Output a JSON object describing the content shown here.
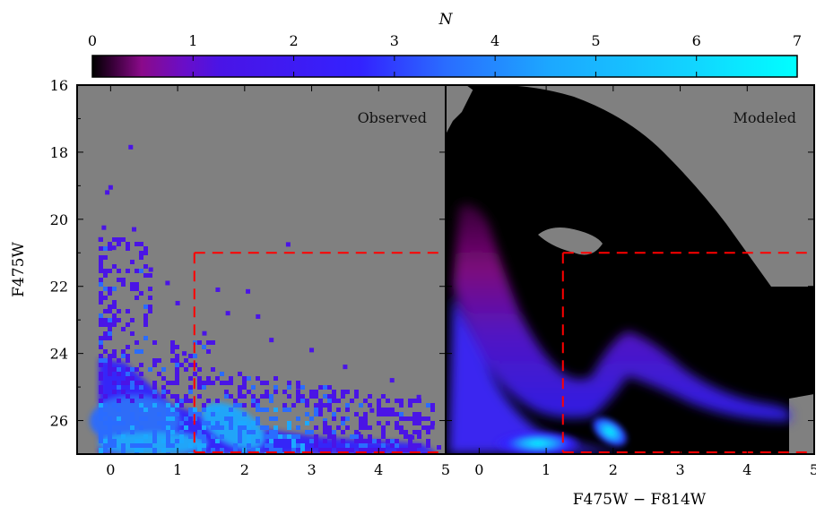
{
  "chart_data": {
    "type": "heatmap",
    "colorbar": {
      "label": "N",
      "ticks": [
        "0",
        "1",
        "2",
        "3",
        "4",
        "5",
        "6",
        "7"
      ],
      "range": [
        0,
        7
      ],
      "colors": [
        "#000000",
        "#8a0a8a",
        "#4a14e6",
        "#3322ff",
        "#2a6cff",
        "#1ca8ff",
        "#12d4ff",
        "#00ffff"
      ]
    },
    "background_color": "#808080",
    "ylabel": "F475W",
    "xlabel": "F475W − F814W",
    "ylim": [
      16,
      27
    ],
    "y_inverted": true,
    "y_ticks": [
      "16",
      "18",
      "20",
      "22",
      "24",
      "26"
    ],
    "y_tick_values": [
      16,
      18,
      20,
      22,
      24,
      26
    ],
    "panels": [
      {
        "label": "Observed",
        "xlim": [
          -0.5,
          5
        ],
        "x_ticks": [
          "0",
          "1",
          "2",
          "3",
          "4",
          "5"
        ],
        "x_tick_values": [
          0,
          1,
          2,
          3,
          4,
          5
        ],
        "box": {
          "x_start": 1.25,
          "y_top": 21,
          "color": "#ff0000",
          "style": "dashed"
        },
        "points": [
          [
            0.3,
            17.85,
            1
          ],
          [
            -0.05,
            19.2,
            1
          ],
          [
            0.0,
            19.05,
            1
          ],
          [
            -0.1,
            20.25,
            1
          ],
          [
            0.35,
            20.3,
            1
          ],
          [
            -0.15,
            20.6,
            1
          ],
          [
            2.65,
            20.75,
            1
          ],
          [
            0.05,
            20.85,
            1
          ],
          [
            0.6,
            21.5,
            1
          ],
          [
            0.85,
            21.9,
            1
          ],
          [
            1.6,
            22.1,
            1
          ],
          [
            2.05,
            22.15,
            1
          ],
          [
            1.0,
            22.5,
            1
          ],
          [
            1.75,
            22.8,
            1
          ],
          [
            2.2,
            22.9,
            1
          ],
          [
            1.4,
            23.4,
            1
          ],
          [
            2.4,
            23.6,
            1
          ],
          [
            3.0,
            23.9,
            1
          ],
          [
            1.1,
            24.0,
            1
          ],
          [
            3.5,
            24.4,
            1
          ],
          [
            4.2,
            24.8,
            1
          ],
          [
            2.8,
            25.0,
            1
          ],
          [
            4.6,
            25.3,
            1
          ],
          [
            3.9,
            25.7,
            1
          ],
          [
            4.8,
            26.2,
            1
          ],
          [
            4.5,
            26.5,
            1
          ],
          [
            4.9,
            26.8,
            1
          ],
          [
            4.3,
            26.9,
            1
          ],
          [
            3.7,
            26.4,
            1
          ],
          [
            3.2,
            26.0,
            2
          ]
        ]
      },
      {
        "label": "Modeled",
        "xlim": [
          -0.5,
          5
        ],
        "x_ticks": [
          "0",
          "1",
          "2",
          "3",
          "4",
          "5"
        ],
        "x_tick_values": [
          0,
          1,
          2,
          3,
          4,
          5
        ],
        "box": {
          "x_start": 1.25,
          "y_top": 21,
          "color": "#ff0000",
          "style": "dashed"
        }
      }
    ]
  }
}
